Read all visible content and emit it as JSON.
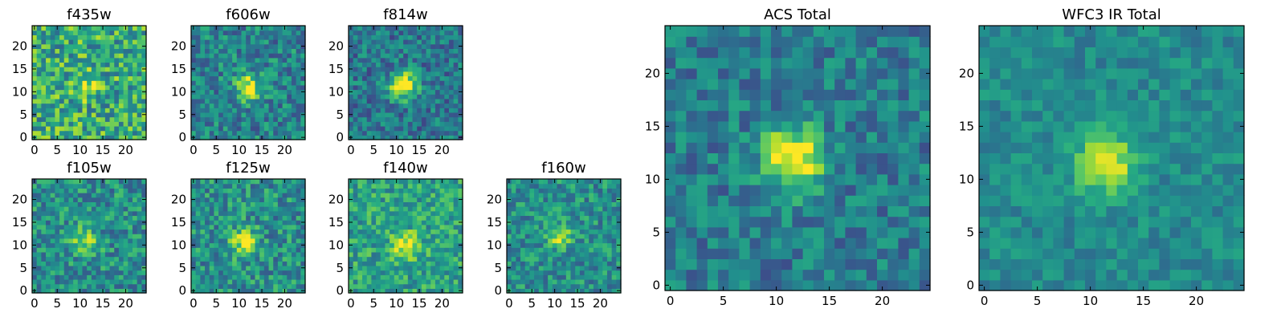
{
  "chart_data": [
    {
      "type": "heatmap",
      "title": "f435w",
      "grid_size": 25,
      "xticks": [
        0,
        5,
        10,
        15,
        20
      ],
      "yticks": [
        0,
        5,
        10,
        15,
        20
      ],
      "xlim": [
        0,
        24
      ],
      "ylim": [
        0,
        24
      ],
      "colormap": "viridis",
      "source_peak": [
        11.5,
        11.5
      ],
      "source_strength": 0.25,
      "noise": 0.28,
      "background": 0.62,
      "seed": 1
    },
    {
      "type": "heatmap",
      "title": "f606w",
      "grid_size": 25,
      "xticks": [
        0,
        5,
        10,
        15,
        20
      ],
      "yticks": [
        0,
        5,
        10,
        15,
        20
      ],
      "xlim": [
        0,
        24
      ],
      "ylim": [
        0,
        24
      ],
      "colormap": "viridis",
      "source_peak": [
        12,
        11
      ],
      "source_strength": 0.55,
      "noise": 0.22,
      "background": 0.45,
      "seed": 2
    },
    {
      "type": "heatmap",
      "title": "f814w",
      "grid_size": 25,
      "xticks": [
        0,
        5,
        10,
        15,
        20
      ],
      "yticks": [
        0,
        5,
        10,
        15,
        20
      ],
      "xlim": [
        0,
        24
      ],
      "ylim": [
        0,
        24
      ],
      "colormap": "viridis",
      "source_peak": [
        11.5,
        11.5
      ],
      "source_strength": 0.7,
      "noise": 0.2,
      "background": 0.4,
      "seed": 3
    },
    {
      "type": "heatmap",
      "title": "f105w",
      "grid_size": 25,
      "xticks": [
        0,
        5,
        10,
        15,
        20
      ],
      "yticks": [
        0,
        5,
        10,
        15,
        20
      ],
      "xlim": [
        0,
        24
      ],
      "ylim": [
        0,
        24
      ],
      "colormap": "viridis",
      "source_peak": [
        11,
        11
      ],
      "source_strength": 0.35,
      "noise": 0.22,
      "background": 0.5,
      "seed": 4
    },
    {
      "type": "heatmap",
      "title": "f125w",
      "grid_size": 25,
      "xticks": [
        0,
        5,
        10,
        15,
        20
      ],
      "yticks": [
        0,
        5,
        10,
        15,
        20
      ],
      "xlim": [
        0,
        24
      ],
      "ylim": [
        0,
        24
      ],
      "colormap": "viridis",
      "source_peak": [
        11,
        11
      ],
      "source_strength": 0.45,
      "noise": 0.22,
      "background": 0.5,
      "seed": 5
    },
    {
      "type": "heatmap",
      "title": "f140w",
      "grid_size": 25,
      "xticks": [
        0,
        5,
        10,
        15,
        20
      ],
      "yticks": [
        0,
        5,
        10,
        15,
        20
      ],
      "xlim": [
        0,
        24
      ],
      "ylim": [
        0,
        24
      ],
      "colormap": "viridis",
      "source_peak": [
        12,
        10
      ],
      "source_strength": 0.4,
      "noise": 0.2,
      "background": 0.58,
      "seed": 6
    },
    {
      "type": "heatmap",
      "title": "f160w",
      "grid_size": 25,
      "xticks": [
        0,
        5,
        10,
        15,
        20
      ],
      "yticks": [
        0,
        5,
        10,
        15,
        20
      ],
      "xlim": [
        0,
        24
      ],
      "ylim": [
        0,
        24
      ],
      "colormap": "viridis",
      "source_peak": [
        11,
        12
      ],
      "source_strength": 0.35,
      "noise": 0.2,
      "background": 0.5,
      "seed": 7
    },
    {
      "type": "heatmap",
      "title": "ACS Total",
      "grid_size": 25,
      "xticks": [
        0,
        5,
        10,
        15,
        20
      ],
      "yticks": [
        0,
        5,
        10,
        15,
        20
      ],
      "xlim": [
        0,
        24
      ],
      "ylim": [
        0,
        24
      ],
      "colormap": "viridis",
      "source_peak": [
        11.5,
        12
      ],
      "source_strength": 0.65,
      "noise": 0.18,
      "background": 0.42,
      "seed": 8
    },
    {
      "type": "heatmap",
      "title": "WFC3 IR Total",
      "grid_size": 25,
      "xticks": [
        0,
        5,
        10,
        15,
        20
      ],
      "yticks": [
        0,
        5,
        10,
        15,
        20
      ],
      "xlim": [
        0,
        24
      ],
      "ylim": [
        0,
        24
      ],
      "colormap": "viridis",
      "source_peak": [
        11.5,
        11.5
      ],
      "source_strength": 0.5,
      "noise": 0.12,
      "background": 0.48,
      "seed": 9
    }
  ]
}
